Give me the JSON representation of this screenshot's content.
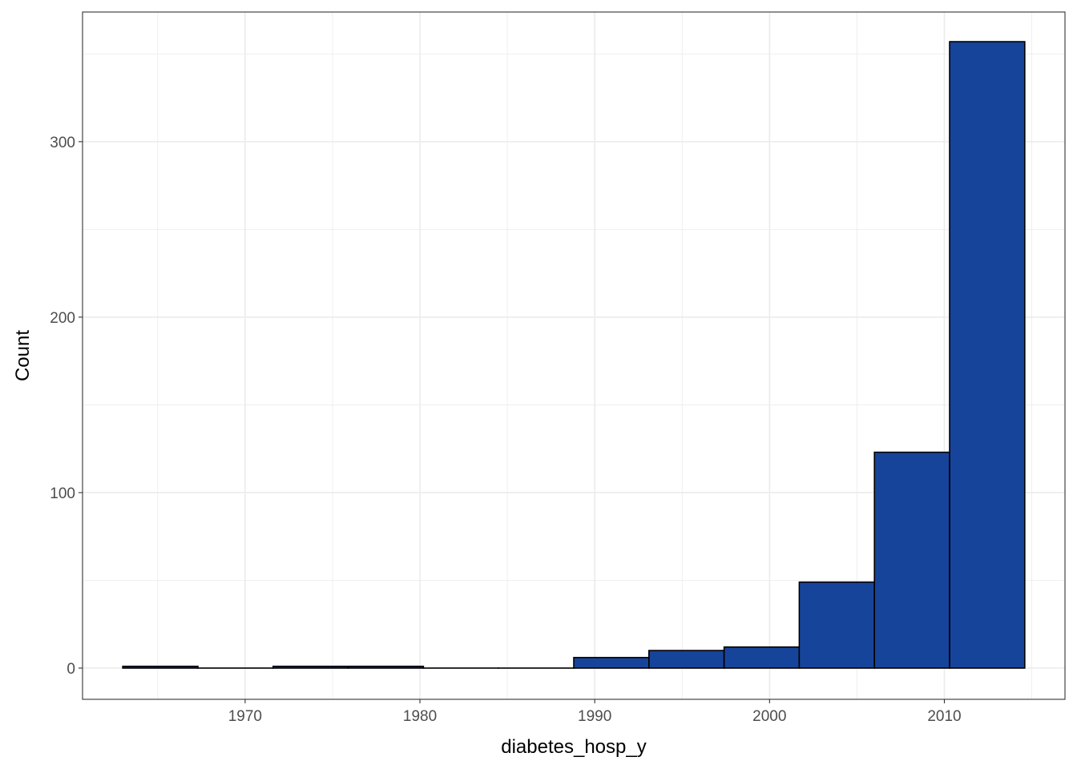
{
  "chart_data": {
    "type": "bar",
    "subtype": "histogram",
    "title": "",
    "xlabel": "diabetes_hosp_y",
    "ylabel": "Count",
    "xlim": [
      1960.7,
      2016.9
    ],
    "ylim": [
      -17.8,
      373.9
    ],
    "x_ticks": [
      1970,
      1980,
      1990,
      2000,
      2010
    ],
    "y_ticks": [
      0,
      100,
      200,
      300
    ],
    "grid": true,
    "legend": "none",
    "bar_fill": "#17449b",
    "bar_outline": "#000000",
    "bins": [
      {
        "start": 1963.0,
        "end": 1967.3,
        "count": 1
      },
      {
        "start": 1967.3,
        "end": 1971.6,
        "count": 0
      },
      {
        "start": 1971.6,
        "end": 1975.9,
        "count": 1
      },
      {
        "start": 1975.9,
        "end": 1980.2,
        "count": 1
      },
      {
        "start": 1980.2,
        "end": 1984.5,
        "count": 0
      },
      {
        "start": 1984.5,
        "end": 1988.8,
        "count": 0
      },
      {
        "start": 1988.8,
        "end": 1993.1,
        "count": 6
      },
      {
        "start": 1993.1,
        "end": 1997.4,
        "count": 10
      },
      {
        "start": 1997.4,
        "end": 2001.7,
        "count": 12
      },
      {
        "start": 2001.7,
        "end": 2006.0,
        "count": 49
      },
      {
        "start": 2006.0,
        "end": 2010.3,
        "count": 123
      },
      {
        "start": 2010.3,
        "end": 2014.6,
        "count": 357
      }
    ]
  }
}
